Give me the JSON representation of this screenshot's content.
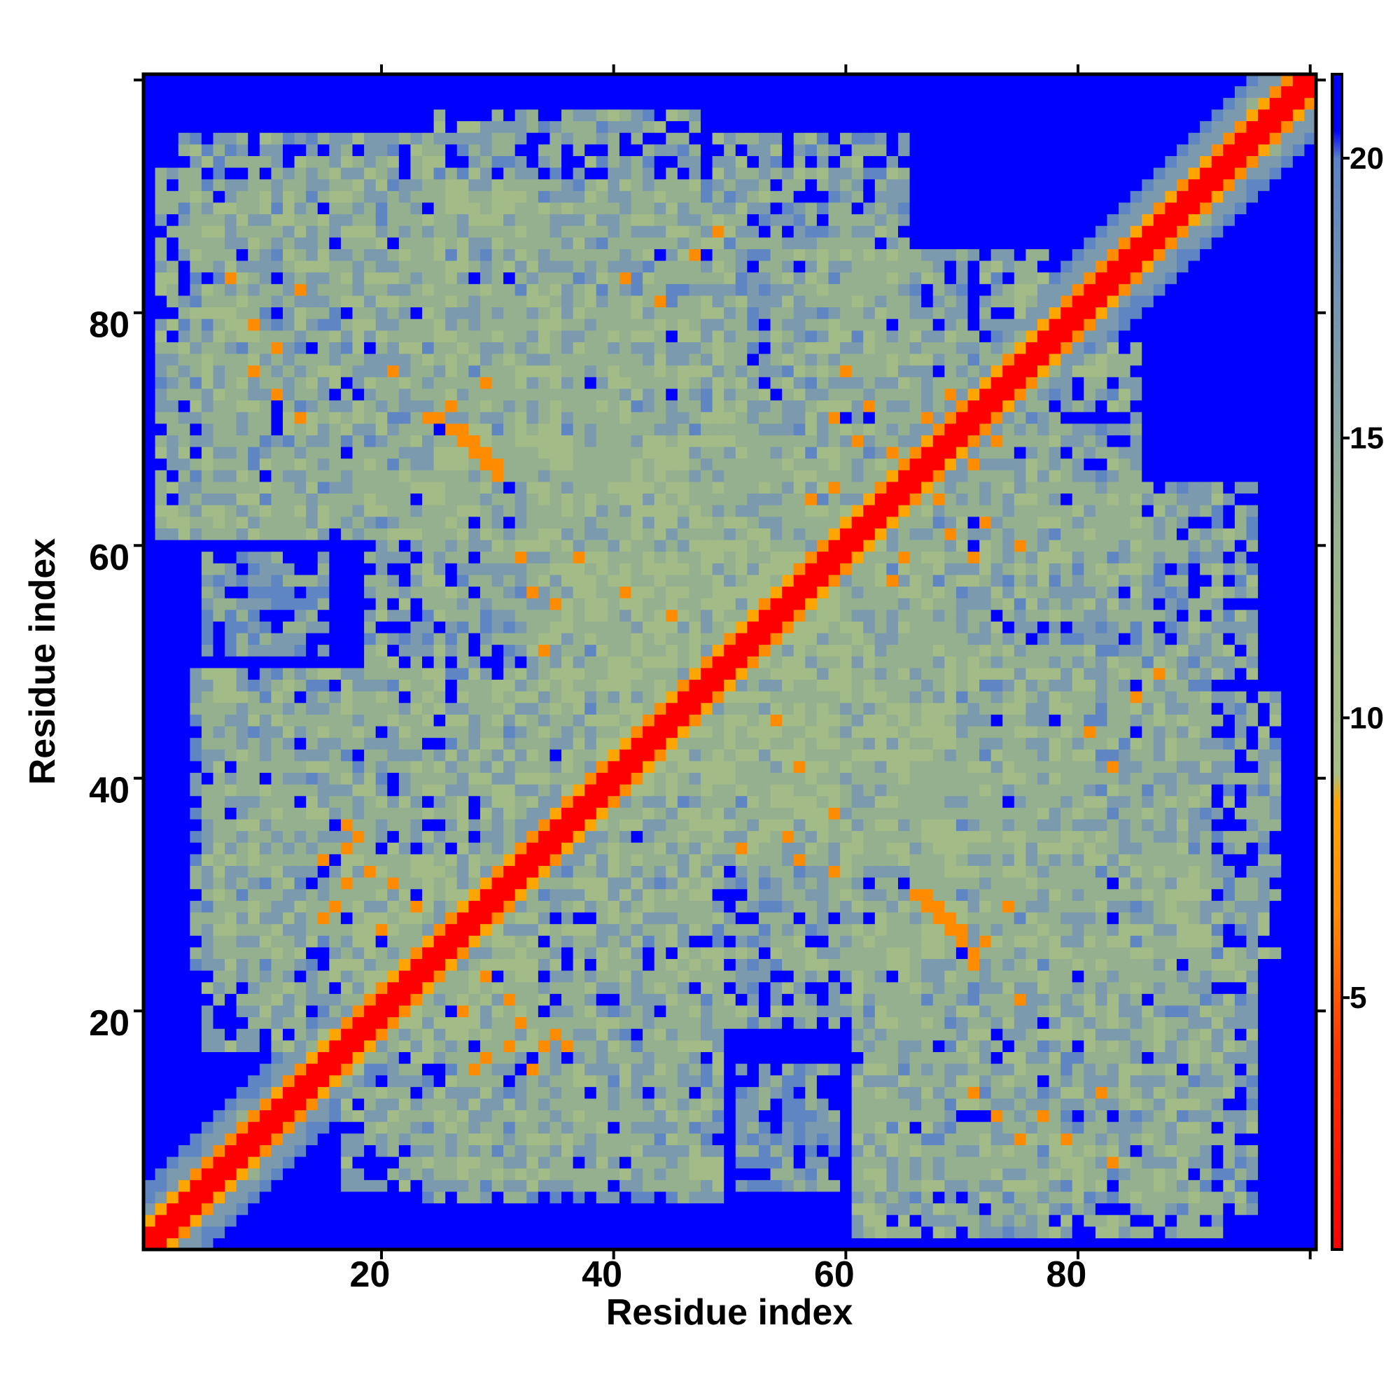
{
  "chart_data": {
    "type": "heatmap",
    "title": "",
    "xlabel": "Residue index",
    "ylabel": "Residue index",
    "xlim": [
      1,
      101
    ],
    "ylim": [
      1,
      101
    ],
    "grid_size": 101,
    "x_ticks": [
      20,
      40,
      60,
      80
    ],
    "y_ticks": [
      20,
      40,
      60,
      80
    ],
    "colorbar": {
      "ticks": [
        5,
        10,
        15,
        20
      ],
      "range": [
        0.5,
        21.5
      ],
      "stops": [
        {
          "value": 0.5,
          "color": "#ff0000"
        },
        {
          "value": 4.0,
          "color": "#ff3300"
        },
        {
          "value": 6.5,
          "color": "#ff8c00"
        },
        {
          "value": 8.5,
          "color": "#ffa500"
        },
        {
          "value": 9.0,
          "color": "#a8be82"
        },
        {
          "value": 13.0,
          "color": "#99b48c"
        },
        {
          "value": 18.0,
          "color": "#6e90b8"
        },
        {
          "value": 20.0,
          "color": "#5a82c8"
        },
        {
          "value": 20.5,
          "color": "#0000ff"
        },
        {
          "value": 21.5,
          "color": "#0000ff"
        }
      ]
    },
    "background_value": 21,
    "diagonal_band": {
      "core_value": 2,
      "near_value": 6,
      "half_width_values": [
        2,
        6,
        8.5,
        12,
        15
      ]
    },
    "contact_blocks": [
      {
        "i": [
          2,
          28
        ],
        "j": [
          62,
          93
        ],
        "value": 14
      },
      {
        "i": [
          26,
          48
        ],
        "j": [
          64,
          98
        ],
        "value": 14
      },
      {
        "i": [
          30,
          52
        ],
        "j": [
          55,
          82
        ],
        "value": 14
      },
      {
        "i": [
          50,
          66
        ],
        "j": [
          66,
          96
        ],
        "value": 14
      },
      {
        "i": [
          6,
          34
        ],
        "j": [
          18,
          50
        ],
        "value": 13
      },
      {
        "i": [
          40,
          70
        ],
        "j": [
          20,
          60
        ],
        "value": 14
      },
      {
        "i": [
          62,
          96
        ],
        "j": [
          4,
          26
        ],
        "value": 14
      },
      {
        "i": [
          68,
          92
        ],
        "j": [
          26,
          52
        ],
        "value": 14
      },
      {
        "i": [
          25,
          50
        ],
        "j": [
          5,
          20
        ],
        "value": 15
      },
      {
        "i": [
          52,
          60
        ],
        "j": [
          6,
          16
        ],
        "value": 16
      },
      {
        "i": [
          55,
          78
        ],
        "j": [
          60,
          86
        ],
        "value": 14
      },
      {
        "i": [
          34,
          60
        ],
        "j": [
          40,
          66
        ],
        "value": 13
      }
    ],
    "close_contacts": [
      [
        27,
        73
      ],
      [
        28,
        71
      ],
      [
        29,
        70
      ],
      [
        30,
        69
      ],
      [
        31,
        68
      ],
      [
        22,
        76
      ],
      [
        25,
        72
      ],
      [
        67,
        31
      ],
      [
        68,
        30
      ],
      [
        69,
        29
      ],
      [
        70,
        28
      ],
      [
        71,
        27
      ],
      [
        72,
        26
      ],
      [
        75,
        30
      ],
      [
        33,
        60
      ],
      [
        34,
        57
      ],
      [
        35,
        52
      ],
      [
        36,
        56
      ],
      [
        48,
        86
      ],
      [
        50,
        88
      ],
      [
        44,
        44
      ],
      [
        60,
        72
      ],
      [
        62,
        70
      ],
      [
        65,
        69
      ],
      [
        68,
        72
      ],
      [
        70,
        74
      ],
      [
        58,
        65
      ],
      [
        60,
        66
      ],
      [
        18,
        35
      ],
      [
        19,
        36
      ],
      [
        20,
        33
      ],
      [
        22,
        32
      ],
      [
        24,
        30
      ],
      [
        21,
        28
      ],
      [
        12,
        74
      ],
      [
        14,
        72
      ],
      [
        10,
        76
      ],
      [
        30,
        17
      ],
      [
        32,
        18
      ],
      [
        34,
        16
      ],
      [
        37,
        18
      ],
      [
        29,
        16
      ],
      [
        80,
        10
      ],
      [
        83,
        14
      ],
      [
        84,
        8
      ],
      [
        78,
        12
      ],
      [
        82,
        45
      ],
      [
        84,
        42
      ],
      [
        55,
        46
      ],
      [
        57,
        42
      ],
      [
        60,
        38
      ],
      [
        66,
        65
      ],
      [
        70,
        62
      ],
      [
        73,
        63
      ],
      [
        76,
        61
      ]
    ]
  }
}
